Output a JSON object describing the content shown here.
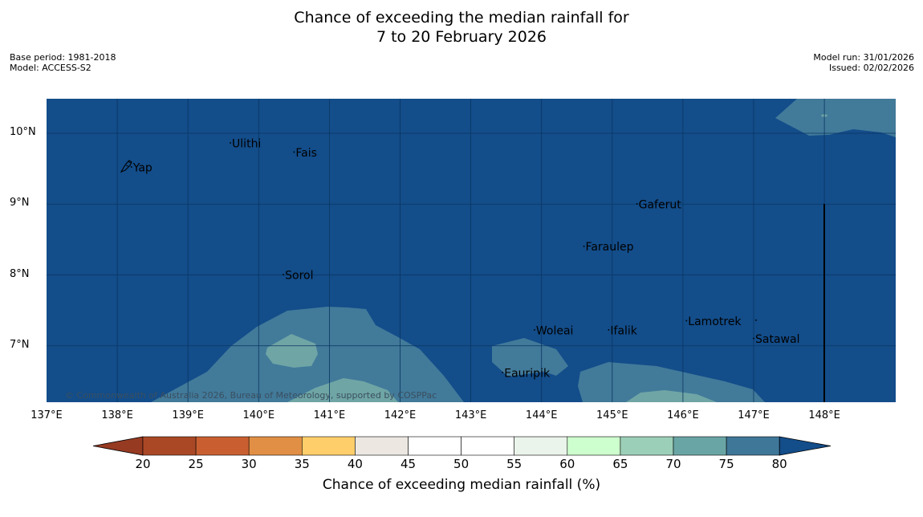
{
  "title": {
    "line1": "Chance of exceeding the median rainfall for",
    "line2": "7 to 20 February 2026"
  },
  "meta": {
    "base_period": "Base period: 1981-2018",
    "model": "Model: ACCESS-S2",
    "model_run": "Model run: 31/01/2026",
    "issued": "Issued: 02/02/2026"
  },
  "map": {
    "lat_labels": [
      "10°N",
      "9°N",
      "8°N",
      "7°N"
    ],
    "lon_labels": [
      "137°E",
      "138°E",
      "139°E",
      "140°E",
      "141°E",
      "142°E",
      "143°E",
      "144°E",
      "145°E",
      "146°E",
      "147°E",
      "148°E"
    ],
    "places": [
      {
        "name": "Yap",
        "lon": 138.2,
        "lat": 9.52
      },
      {
        "name": "Ulithi",
        "lon": 139.6,
        "lat": 9.86
      },
      {
        "name": "Fais",
        "lon": 140.5,
        "lat": 9.73
      },
      {
        "name": "Gaferut",
        "lon": 145.35,
        "lat": 9.0
      },
      {
        "name": "Faraulep",
        "lon": 144.6,
        "lat": 8.4
      },
      {
        "name": "Sorol",
        "lon": 140.35,
        "lat": 8.0
      },
      {
        "name": "Lamotrek",
        "lon": 146.05,
        "lat": 7.35
      },
      {
        "name": "Woleai",
        "lon": 143.9,
        "lat": 7.22
      },
      {
        "name": "Ifalik",
        "lon": 144.95,
        "lat": 7.22
      },
      {
        "name": "Satawal",
        "lon": 147.0,
        "lat": 7.1
      },
      {
        "name": "Eauripik",
        "lon": 143.45,
        "lat": 6.62
      }
    ],
    "copyright": "© Commonwealth of Australia 2026, Bureau of Meteorology, supported by COSPPac",
    "colors": {
      "ocean": "#134d8a",
      "c70_75": "#427a9a",
      "c65_70": "#6fa5a5",
      "grid": "#0a3560",
      "land": "#000000"
    }
  },
  "colorbar": {
    "ticks": [
      "20",
      "25",
      "30",
      "35",
      "40",
      "45",
      "50",
      "55",
      "60",
      "65",
      "70",
      "75",
      "80"
    ],
    "colors": [
      "#aa4826",
      "#c95f30",
      "#e18f45",
      "#fece6a",
      "#ece8e1",
      "#ffffff",
      "#ffffff",
      "#eaf4ea",
      "#cdfecd",
      "#9ccfb8",
      "#6aa5a5",
      "#3f7799"
    ],
    "under_color": "#973a22",
    "over_color": "#134d8a",
    "label": "Chance of exceeding median rainfall (%)"
  }
}
